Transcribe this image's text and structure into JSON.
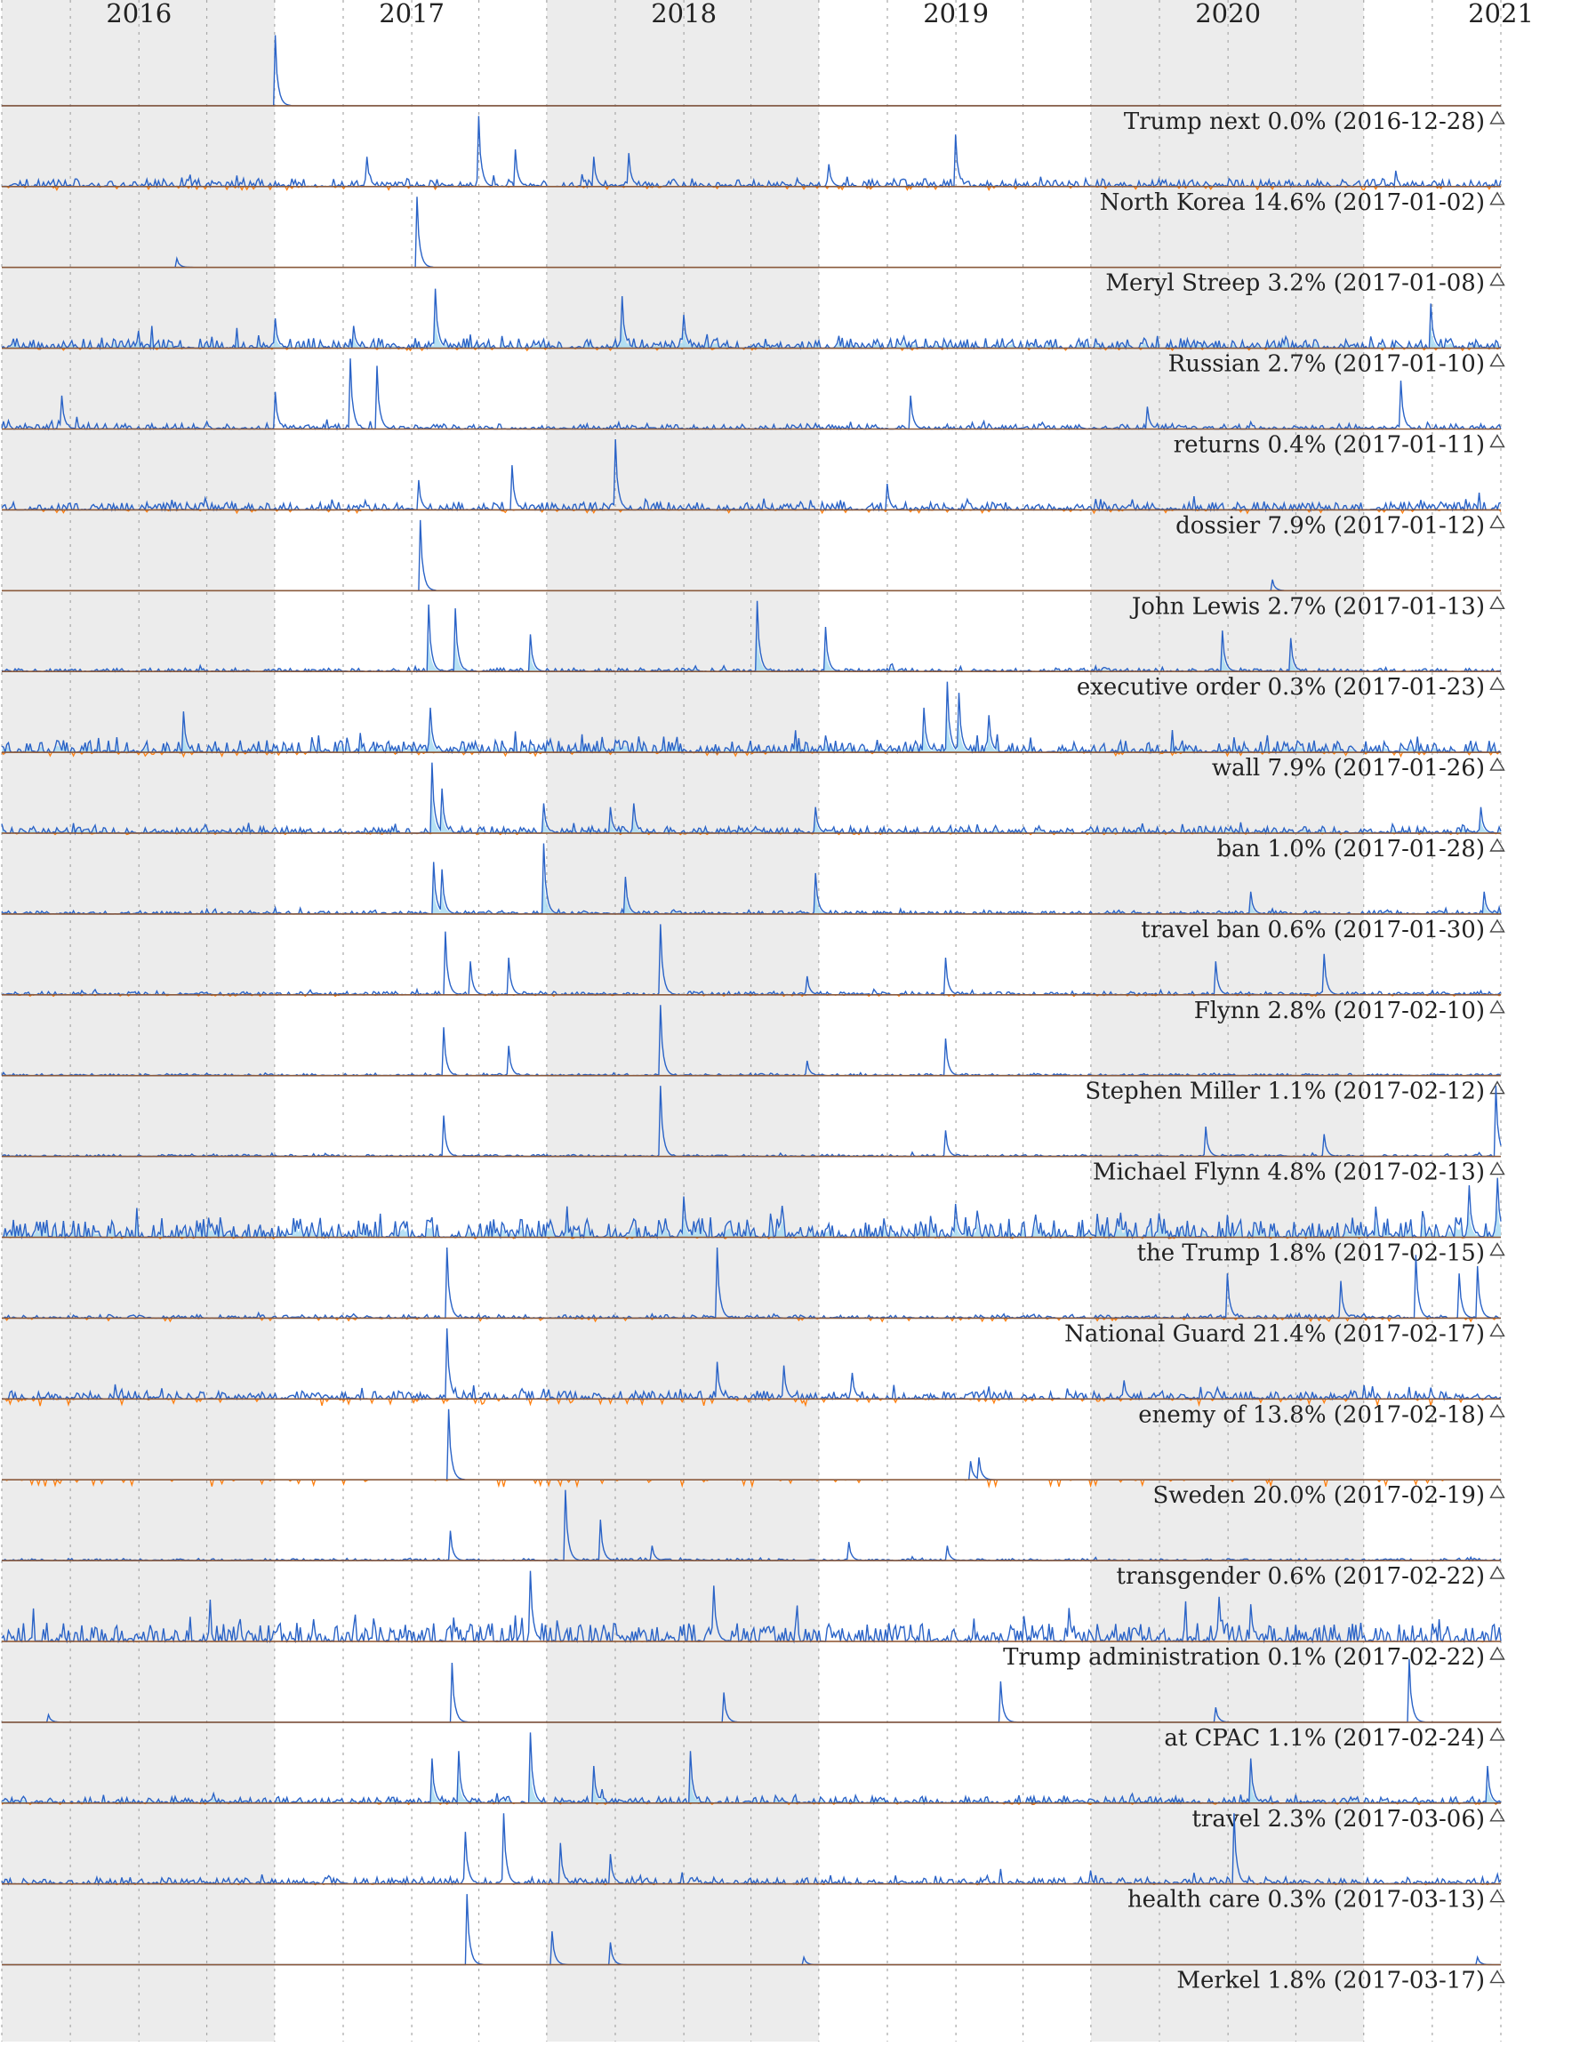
{
  "colors": {
    "band": "#ececec",
    "grid": "#a8a8a8",
    "line": "#2a63c7",
    "fill": "#a9dcf2",
    "negative": "#ff7f0e",
    "baseline": "#8a5a3c"
  },
  "chart_data": {
    "type": "area",
    "x_axis": {
      "ticks": [
        "2016",
        "2017",
        "2018",
        "2019",
        "2020",
        "2021"
      ],
      "range": [
        "2015-07-01",
        "2021-01-01"
      ],
      "minor_gridlines": "quarterly, dotted",
      "shaded_bands": [
        [
          "2015-07-01",
          "2016-07-01"
        ],
        [
          "2017-07-01",
          "2018-07-01"
        ],
        [
          "2019-07-01",
          "2020-07-01"
        ]
      ]
    },
    "grid": true,
    "panel_marker_icon": "triangle-up-icon",
    "panels": [
      {
        "label": "Trump next 0.0% (2016-12-28)",
        "spikes": [
          [
            "2016-07-01",
            0.95
          ]
        ],
        "noise": 0.0,
        "neg": 0.0,
        "fill": false
      },
      {
        "label": "North Korea 14.6% (2017-01-02)",
        "spikes": [
          [
            "2017-04-01",
            0.95
          ],
          [
            "2017-05-20",
            0.5
          ],
          [
            "2016-11-01",
            0.4
          ],
          [
            "2017-10-20",
            0.45
          ],
          [
            "2019-01-01",
            0.7
          ],
          [
            "2018-07-15",
            0.3
          ],
          [
            "2017-09-01",
            0.4
          ]
        ],
        "noise": 0.12,
        "neg": 0.12,
        "fill": false
      },
      {
        "label": "Meryl Streep 3.2% (2017-01-08)",
        "spikes": [
          [
            "2017-01-08",
            0.95
          ],
          [
            "2016-02-20",
            0.12
          ]
        ],
        "noise": 0.0,
        "neg": 0.0,
        "fill": false
      },
      {
        "label": "Russian 2.7% (2017-01-10)",
        "spikes": [
          [
            "2017-02-01",
            0.8
          ],
          [
            "2017-10-10",
            0.7
          ],
          [
            "2016-07-01",
            0.4
          ],
          [
            "2020-09-30",
            0.6
          ],
          [
            "2018-01-01",
            0.45
          ],
          [
            "2016-10-15",
            0.3
          ]
        ],
        "noise": 0.15,
        "neg": 0.08,
        "fill": true
      },
      {
        "label": "returns 0.4% (2017-01-11)",
        "spikes": [
          [
            "2016-10-10",
            0.95
          ],
          [
            "2016-11-15",
            0.85
          ],
          [
            "2016-07-01",
            0.5
          ],
          [
            "2015-09-20",
            0.45
          ],
          [
            "2018-11-01",
            0.45
          ],
          [
            "2020-08-20",
            0.65
          ],
          [
            "2019-09-15",
            0.3
          ]
        ],
        "noise": 0.08,
        "neg": 0.0,
        "fill": false
      },
      {
        "label": "dossier 7.9% (2017-01-12)",
        "spikes": [
          [
            "2017-10-01",
            0.95
          ],
          [
            "2017-05-15",
            0.6
          ],
          [
            "2017-01-10",
            0.4
          ],
          [
            "2018-10-01",
            0.35
          ]
        ],
        "noise": 0.12,
        "neg": 0.12,
        "fill": false
      },
      {
        "label": "John Lewis 2.7% (2017-01-13)",
        "spikes": [
          [
            "2017-01-13",
            0.95
          ],
          [
            "2020-03-01",
            0.15
          ]
        ],
        "noise": 0.0,
        "neg": 0.0,
        "fill": false
      },
      {
        "label": "executive order 0.3% (2017-01-23)",
        "spikes": [
          [
            "2017-01-23",
            0.9
          ],
          [
            "2017-02-28",
            0.85
          ],
          [
            "2018-07-10",
            0.6
          ],
          [
            "2018-04-10",
            0.95
          ],
          [
            "2020-03-25",
            0.45
          ],
          [
            "2019-12-25",
            0.55
          ],
          [
            "2017-06-10",
            0.5
          ]
        ],
        "noise": 0.05,
        "neg": 0.0,
        "fill": true
      },
      {
        "label": "wall 7.9% (2017-01-26)",
        "spikes": [
          [
            "2018-12-20",
            0.95
          ],
          [
            "2019-01-05",
            0.8
          ],
          [
            "2016-03-01",
            0.55
          ],
          [
            "2017-01-26",
            0.6
          ],
          [
            "2018-11-20",
            0.6
          ],
          [
            "2019-02-15",
            0.5
          ]
        ],
        "noise": 0.18,
        "neg": 0.15,
        "fill": true
      },
      {
        "label": "ban 1.0% (2017-01-28)",
        "spikes": [
          [
            "2017-01-28",
            0.95
          ],
          [
            "2017-02-10",
            0.6
          ],
          [
            "2017-06-26",
            0.4
          ],
          [
            "2017-09-25",
            0.35
          ],
          [
            "2017-10-25",
            0.4
          ],
          [
            "2018-06-26",
            0.35
          ],
          [
            "2020-12-05",
            0.35
          ]
        ],
        "noise": 0.1,
        "neg": 0.05,
        "fill": true
      },
      {
        "label": "travel ban 0.6% (2017-01-30)",
        "spikes": [
          [
            "2017-01-30",
            0.7
          ],
          [
            "2017-06-26",
            0.95
          ],
          [
            "2017-02-10",
            0.6
          ],
          [
            "2017-10-15",
            0.5
          ],
          [
            "2018-06-26",
            0.55
          ],
          [
            "2020-01-31",
            0.3
          ],
          [
            "2020-12-10",
            0.3
          ]
        ],
        "noise": 0.05,
        "neg": 0.0,
        "fill": true
      },
      {
        "label": "Flynn 2.8% (2017-02-10)",
        "spikes": [
          [
            "2017-02-14",
            0.85
          ],
          [
            "2017-12-01",
            0.95
          ],
          [
            "2017-05-10",
            0.5
          ],
          [
            "2017-03-20",
            0.45
          ],
          [
            "2019-12-15",
            0.45
          ],
          [
            "2020-05-08",
            0.55
          ],
          [
            "2018-06-15",
            0.25
          ],
          [
            "2018-12-18",
            0.5
          ]
        ],
        "noise": 0.05,
        "neg": 0.05,
        "fill": false
      },
      {
        "label": "Stephen Miller 1.1% (2017-02-12)",
        "spikes": [
          [
            "2017-02-12",
            0.65
          ],
          [
            "2017-12-01",
            0.95
          ],
          [
            "2018-12-18",
            0.5
          ],
          [
            "2017-05-10",
            0.4
          ],
          [
            "2018-06-15",
            0.2
          ]
        ],
        "noise": 0.03,
        "neg": 0.0,
        "fill": false
      },
      {
        "label": "Michael Flynn 4.8% (2017-02-13)",
        "spikes": [
          [
            "2017-02-13",
            0.55
          ],
          [
            "2017-12-01",
            0.95
          ],
          [
            "2018-12-18",
            0.35
          ],
          [
            "2020-05-08",
            0.3
          ],
          [
            "2019-12-01",
            0.4
          ],
          [
            "2020-12-25",
            0.95
          ]
        ],
        "noise": 0.03,
        "neg": 0.0,
        "fill": false
      },
      {
        "label": "the Trump 1.8% (2017-02-15)",
        "spikes": [
          [
            "2018-01-01",
            0.55
          ],
          [
            "2019-01-01",
            0.45
          ],
          [
            "2020-11-20",
            0.7
          ],
          [
            "2020-12-28",
            0.8
          ]
        ],
        "noise": 0.3,
        "neg": 0.05,
        "fill": true
      },
      {
        "label": "National Guard 21.4% (2017-02-17)",
        "spikes": [
          [
            "2017-02-17",
            0.95
          ],
          [
            "2018-02-15",
            0.95
          ],
          [
            "2020-01-01",
            0.6
          ],
          [
            "2020-06-01",
            0.5
          ],
          [
            "2020-09-10",
            0.85
          ],
          [
            "2020-11-05",
            0.6
          ],
          [
            "2020-12-01",
            0.7
          ]
        ],
        "noise": 0.05,
        "neg": 0.12,
        "fill": false
      },
      {
        "label": "enemy of 13.8% (2017-02-18)",
        "spikes": [
          [
            "2017-02-18",
            0.95
          ],
          [
            "2018-02-15",
            0.5
          ],
          [
            "2018-05-15",
            0.45
          ],
          [
            "2018-08-15",
            0.35
          ],
          [
            "2019-08-15",
            0.25
          ]
        ],
        "noise": 0.12,
        "neg": 0.25,
        "fill": false
      },
      {
        "label": "Sweden 20.0% (2017-02-19)",
        "spikes": [
          [
            "2017-02-19",
            0.95
          ],
          [
            "2019-01-20",
            0.25
          ],
          [
            "2019-02-01",
            0.3
          ]
        ],
        "noise": 0.0,
        "neg": 0.25,
        "fill": false
      },
      {
        "label": "transgender 0.6% (2017-02-22)",
        "spikes": [
          [
            "2017-07-26",
            0.95
          ],
          [
            "2017-09-10",
            0.55
          ],
          [
            "2017-02-22",
            0.4
          ],
          [
            "2018-08-10",
            0.25
          ],
          [
            "2017-11-20",
            0.2
          ],
          [
            "2018-12-20",
            0.2
          ]
        ],
        "noise": 0.03,
        "neg": 0.0,
        "fill": false
      },
      {
        "label": "Trump administration 0.1% (2017-02-22)",
        "spikes": [
          [
            "2017-06-10",
            0.95
          ],
          [
            "2018-02-10",
            0.75
          ],
          [
            "2019-12-20",
            0.6
          ],
          [
            "2020-02-01",
            0.5
          ],
          [
            "2019-06-01",
            0.45
          ]
        ],
        "noise": 0.28,
        "neg": 0.02,
        "fill": false
      },
      {
        "label": "at CPAC 1.1% (2017-02-24)",
        "spikes": [
          [
            "2017-02-24",
            0.8
          ],
          [
            "2018-02-24",
            0.4
          ],
          [
            "2019-03-01",
            0.55
          ],
          [
            "2020-09-01",
            0.85
          ],
          [
            "2015-09-01",
            0.1
          ],
          [
            "2019-12-15",
            0.2
          ]
        ],
        "noise": 0.0,
        "neg": 0.0,
        "fill": false
      },
      {
        "label": "travel 2.3% (2017-03-06)",
        "spikes": [
          [
            "2017-03-06",
            0.7
          ],
          [
            "2017-06-10",
            0.95
          ],
          [
            "2018-01-10",
            0.7
          ],
          [
            "2017-09-01",
            0.5
          ],
          [
            "2020-01-31",
            0.6
          ],
          [
            "2020-12-15",
            0.5
          ],
          [
            "2017-01-28",
            0.6
          ]
        ],
        "noise": 0.1,
        "neg": 0.05,
        "fill": true
      },
      {
        "label": "health care 0.3% (2017-03-13)",
        "spikes": [
          [
            "2017-03-13",
            0.7
          ],
          [
            "2017-05-04",
            0.95
          ],
          [
            "2017-07-20",
            0.55
          ],
          [
            "2017-09-25",
            0.4
          ],
          [
            "2020-01-10",
            0.95
          ],
          [
            "2016-02-01",
            0.08
          ]
        ],
        "noise": 0.1,
        "neg": 0.03,
        "fill": false
      },
      {
        "label": "Merkel 1.8% (2017-03-17)",
        "spikes": [
          [
            "2017-03-17",
            0.95
          ],
          [
            "2017-07-08",
            0.45
          ],
          [
            "2017-09-25",
            0.3
          ],
          [
            "2018-06-10",
            0.1
          ],
          [
            "2020-12-01",
            0.1
          ]
        ],
        "noise": 0.0,
        "neg": 0.0,
        "fill": false
      }
    ]
  }
}
